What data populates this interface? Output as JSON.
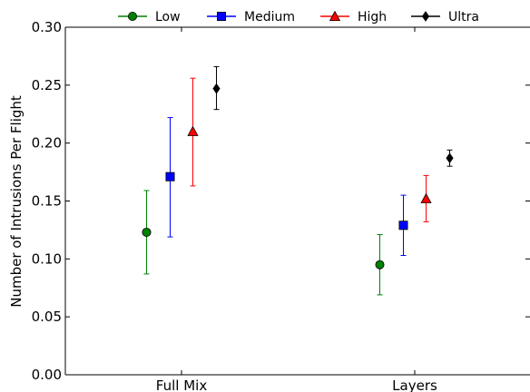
{
  "chart_data": {
    "type": "scatter",
    "title": "",
    "xlabel": "",
    "ylabel": "Number of Intrusions Per Flight",
    "categories": [
      "Full Mix",
      "Layers"
    ],
    "ylim": [
      0.0,
      0.3
    ],
    "yticks": [
      "0.00",
      "0.05",
      "0.10",
      "0.15",
      "0.20",
      "0.25",
      "0.30"
    ],
    "grid": false,
    "legend_placement": "top, above plot",
    "series": [
      {
        "name": "Low",
        "color": "#008000",
        "marker": "circle",
        "values": [
          0.123,
          0.095
        ],
        "lower": [
          0.087,
          0.069
        ],
        "upper": [
          0.159,
          0.121
        ]
      },
      {
        "name": "Medium",
        "color": "#0000ff",
        "marker": "square",
        "values": [
          0.171,
          0.129
        ],
        "lower": [
          0.119,
          0.103
        ],
        "upper": [
          0.222,
          0.155
        ]
      },
      {
        "name": "High",
        "color": "#ff0000",
        "marker": "triangle",
        "values": [
          0.21,
          0.152
        ],
        "lower": [
          0.163,
          0.132
        ],
        "upper": [
          0.256,
          0.172
        ]
      },
      {
        "name": "Ultra",
        "color": "#000000",
        "marker": "diamond",
        "values": [
          0.247,
          0.187
        ],
        "lower": [
          0.229,
          0.18
        ],
        "upper": [
          0.266,
          0.194
        ]
      }
    ]
  }
}
